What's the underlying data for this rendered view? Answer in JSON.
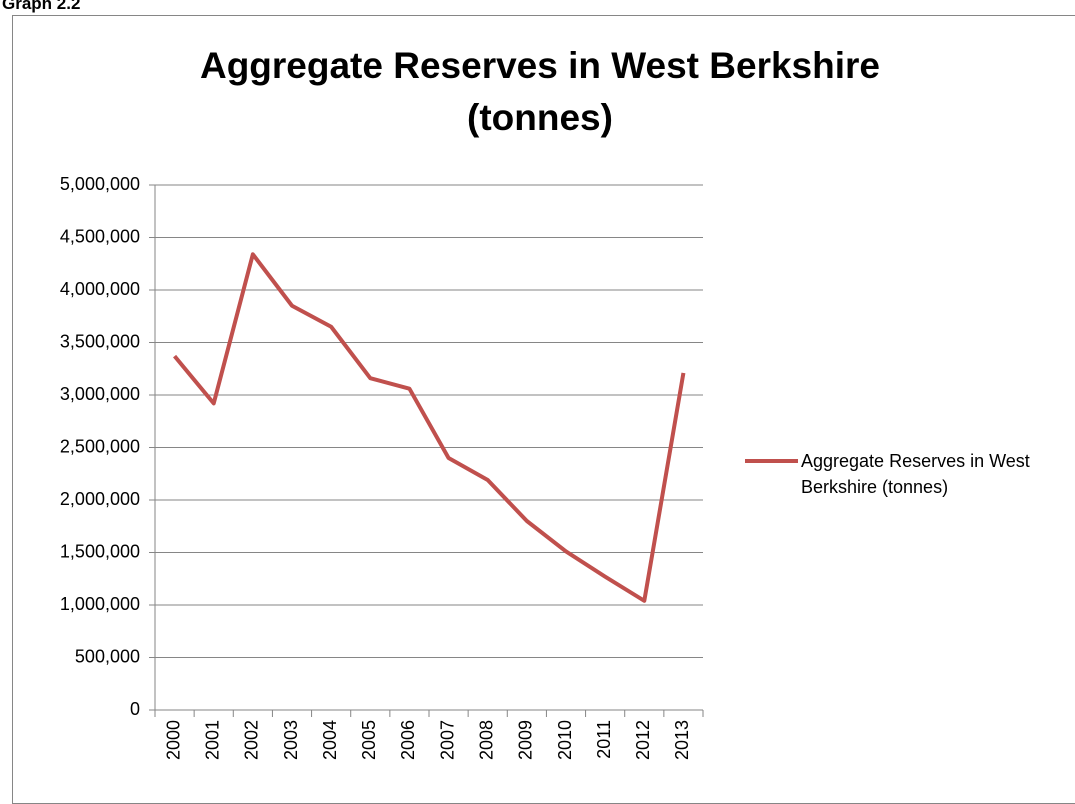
{
  "chart_data": {
    "type": "line",
    "caption": "Graph 2.2",
    "title": "Aggregate Reserves in West Berkshire (tonnes)",
    "categories": [
      "2000",
      "2001",
      "2002",
      "2003",
      "2004",
      "2005",
      "2006",
      "2007",
      "2008",
      "2009",
      "2010",
      "2011",
      "2012",
      "2013"
    ],
    "series": [
      {
        "name": "Aggregate Reserves in West Berkshire (tonnes)",
        "color": "#c0504d",
        "values": [
          3370000,
          2920000,
          4340000,
          3850000,
          3650000,
          3160000,
          3060000,
          2400000,
          2190000,
          1800000,
          1510000,
          1270000,
          1040000,
          3210000
        ]
      }
    ],
    "ylim": [
      0,
      5000000
    ],
    "yticks": [
      0,
      {
        "value": 500000,
        "label": "500,000"
      },
      {
        "value": 1000000,
        "label": "1,000,000"
      },
      {
        "value": 1500000,
        "label": "1,500,000"
      },
      {
        "value": 2000000,
        "label": "2,000,000"
      },
      {
        "value": 2500000,
        "label": "2,500,000"
      },
      {
        "value": 3000000,
        "label": "3,000,000"
      },
      {
        "value": 3500000,
        "label": "3,500,000"
      },
      {
        "value": 4000000,
        "label": "4,000,000"
      },
      {
        "value": 4500000,
        "label": "4,500,000"
      },
      {
        "value": 5000000,
        "label": "5,000,000"
      }
    ],
    "grid": true,
    "legend": "right"
  }
}
